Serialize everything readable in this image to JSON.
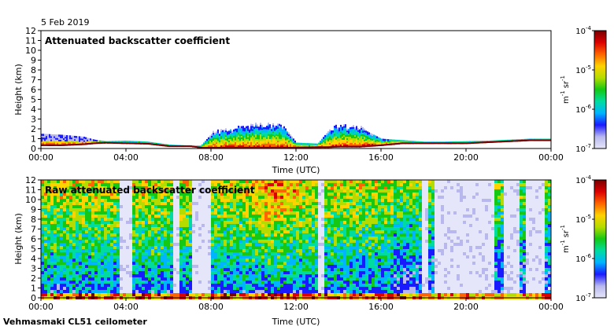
{
  "date": "5 Feb 2019",
  "footer": "Vehmasmaki CL51 ceilometer",
  "colors": {
    "colormap": [
      "#e6e6fa",
      "#b8b8ee",
      "#1a1aff",
      "#00b4ff",
      "#00dca0",
      "#14c814",
      "#b4dc00",
      "#ffd200",
      "#ff6400",
      "#dc0000",
      "#780000"
    ],
    "background": "#ffffff",
    "cloud_base_line": "#000000"
  },
  "chart_data": [
    {
      "type": "heatmap",
      "title": "Attenuated backscatter coefficient",
      "xlabel": "Time (UTC)",
      "ylabel": "Height (km)",
      "xlim": [
        "00:00",
        "00:00"
      ],
      "x_ticks": [
        "00:00",
        "04:00",
        "08:00",
        "12:00",
        "16:00",
        "20:00",
        "00:00"
      ],
      "ylim": [
        0,
        12
      ],
      "y_ticks": [
        "0",
        "1",
        "2",
        "3",
        "4",
        "5",
        "6",
        "7",
        "8",
        "9",
        "10",
        "11",
        "12"
      ],
      "colorbar": {
        "scale": "log",
        "range": [
          1e-07,
          0.0001
        ],
        "ticks": [
          {
            "base": "10",
            "exp": "-7"
          },
          {
            "base": "10",
            "exp": "-6"
          },
          {
            "base": "10",
            "exp": "-5"
          },
          {
            "base": "10",
            "exp": "-4"
          }
        ],
        "label": {
          "m": "m",
          "m_exp": "-1",
          "sr": "sr",
          "sr_exp": "-1"
        }
      },
      "layer_profile": {
        "hours": [
          0,
          1,
          2,
          2.5,
          3,
          4,
          5,
          6,
          7,
          7.5,
          8,
          9,
          10,
          11,
          11.5,
          12,
          13,
          13.5,
          14,
          15,
          16,
          17,
          18,
          19,
          20,
          21,
          22,
          23,
          24
        ],
        "base_km": [
          0.3,
          0.3,
          0.4,
          0.5,
          0.55,
          0.5,
          0.45,
          0.2,
          0.2,
          0.05,
          0.05,
          0.05,
          0.05,
          0.05,
          0.05,
          0.05,
          0.1,
          0.1,
          0.15,
          0.15,
          0.3,
          0.5,
          0.5,
          0.5,
          0.5,
          0.6,
          0.7,
          0.8,
          0.8
        ],
        "top_km": [
          1.5,
          1.4,
          1.2,
          0.9,
          0.75,
          0.8,
          0.7,
          0.4,
          0.3,
          0.3,
          1.5,
          1.9,
          2.3,
          2.3,
          2.0,
          0.6,
          0.5,
          1.8,
          2.2,
          2.1,
          1.0,
          0.85,
          0.7,
          0.7,
          0.75,
          0.8,
          0.9,
          1.0,
          1.0
        ]
      }
    },
    {
      "type": "heatmap",
      "title": "Raw attenuated backscatter coefficient",
      "xlabel": "Time (UTC)",
      "ylabel": "Height (km)",
      "xlim": [
        "00:00",
        "00:00"
      ],
      "x_ticks": [
        "00:00",
        "04:00",
        "08:00",
        "12:00",
        "16:00",
        "20:00",
        "00:00"
      ],
      "ylim": [
        0,
        12
      ],
      "y_ticks": [
        "0",
        "1",
        "2",
        "3",
        "4",
        "5",
        "6",
        "7",
        "8",
        "9",
        "10",
        "11",
        "12"
      ],
      "colorbar": {
        "scale": "log",
        "range": [
          1e-07,
          0.0001
        ],
        "ticks": [
          {
            "base": "10",
            "exp": "-7"
          },
          {
            "base": "10",
            "exp": "-6"
          },
          {
            "base": "10",
            "exp": "-5"
          },
          {
            "base": "10",
            "exp": "-4"
          }
        ],
        "label": {
          "m": "m",
          "m_exp": "-1",
          "sr": "sr",
          "sr_exp": "-1"
        }
      },
      "clear_gap_hours": [
        [
          3.6,
          4.2
        ],
        [
          6.2,
          6.5
        ],
        [
          7.1,
          8.0
        ],
        [
          12.9,
          13.3
        ],
        [
          17.9,
          18.1
        ],
        [
          18.5,
          21.2
        ],
        [
          21.7,
          22.4
        ],
        [
          22.7,
          23.6
        ]
      ]
    }
  ]
}
